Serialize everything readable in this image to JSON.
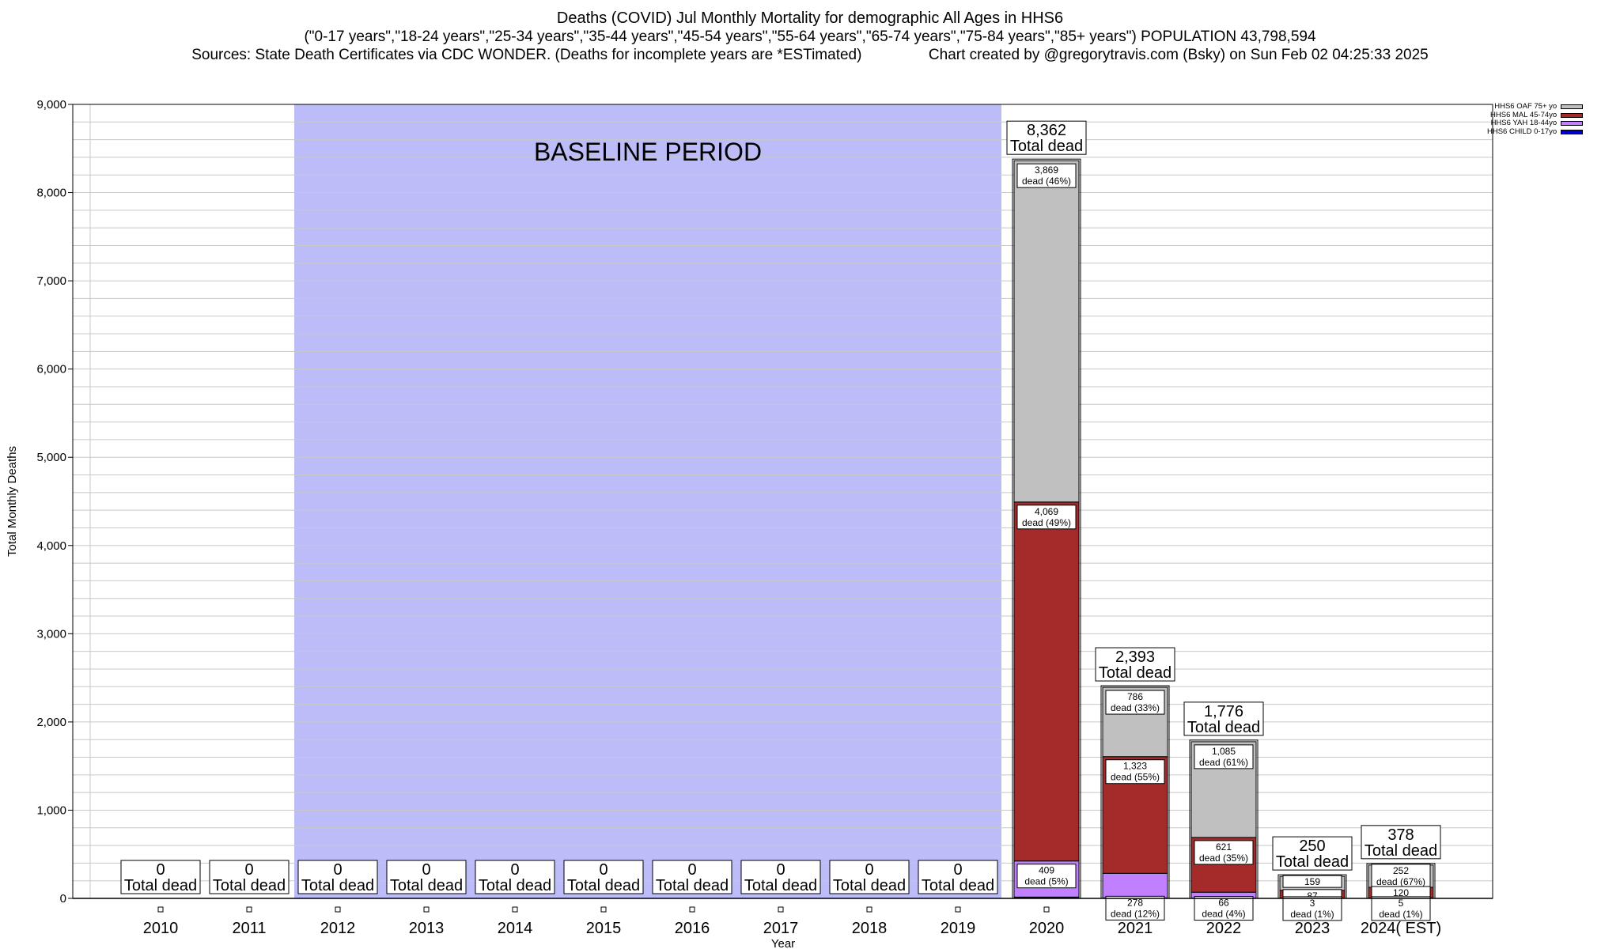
{
  "header": {
    "title": "Deaths (COVID) Jul Monthly Mortality for demographic All Ages in HHS6",
    "subtitle": "(\"0-17 years\",\"18-24 years\",\"25-34 years\",\"35-44 years\",\"45-54 years\",\"55-64 years\",\"65-74 years\",\"75-84 years\",\"85+ years\") POPULATION 43,798,594",
    "sources": "Sources: State Death Certificates via CDC WONDER. (Deaths for incomplete years are *ESTimated)",
    "credit": "Chart created by @gregorytravis.com (Bsky) on Sun Feb 02 04:25:33 2025"
  },
  "colors": {
    "baseline": "#bcbcf9",
    "OAF": "#c0c0c0",
    "MAL": "#a52a2a",
    "YAH": "#c080ff",
    "CHILD": "#0000cd"
  },
  "chart_data": {
    "type": "bar",
    "stacked": true,
    "xlabel": "Year",
    "ylabel": "Total Monthly Deaths",
    "ylim": [
      0,
      9000
    ],
    "yticks": [
      0,
      1000,
      2000,
      3000,
      4000,
      5000,
      6000,
      7000,
      8000,
      9000
    ],
    "ytick_labels": [
      "0",
      "1,000",
      "2,000",
      "3,000",
      "4,000",
      "5,000",
      "6,000",
      "7,000",
      "8,000",
      "9,000"
    ],
    "categories": [
      "2010",
      "2011",
      "2012",
      "2013",
      "2014",
      "2015",
      "2016",
      "2017",
      "2018",
      "2019",
      "2020",
      "2021",
      "2022",
      "2023",
      "2024( EST)"
    ],
    "baseline": {
      "label": "BASELINE PERIOD",
      "from": "2012",
      "to": "2019"
    },
    "series": [
      {
        "name": "HHS6 CHILD 0-17yo",
        "key": "CHILD",
        "values": [
          0,
          0,
          0,
          0,
          0,
          0,
          0,
          0,
          0,
          0,
          15,
          6,
          4,
          1,
          1
        ]
      },
      {
        "name": "HHS6 YAH 18-44yo",
        "key": "YAH",
        "values": [
          0,
          0,
          0,
          0,
          0,
          0,
          0,
          0,
          0,
          0,
          409,
          278,
          66,
          3,
          5
        ]
      },
      {
        "name": "HHS6 MAL 45-74yo",
        "key": "MAL",
        "values": [
          0,
          0,
          0,
          0,
          0,
          0,
          0,
          0,
          0,
          0,
          4069,
          1323,
          621,
          87,
          120
        ]
      },
      {
        "name": "HHS6 OAF 75+ yo",
        "key": "OAF",
        "values": [
          0,
          0,
          0,
          0,
          0,
          0,
          0,
          0,
          0,
          0,
          3869,
          786,
          1085,
          159,
          252
        ]
      }
    ],
    "totals": [
      0,
      0,
      0,
      0,
      0,
      0,
      0,
      0,
      0,
      0,
      8362,
      2393,
      1776,
      250,
      378
    ],
    "total_labels": [
      "0",
      "0",
      "0",
      "0",
      "0",
      "0",
      "0",
      "0",
      "0",
      "0",
      "8,362",
      "2,393",
      "1,776",
      "250",
      "378"
    ],
    "total_suffix": "Total dead",
    "segment_labels": {
      "2020": [
        {
          "key": "OAF",
          "value": "3,869",
          "text": "dead (46%)"
        },
        {
          "key": "MAL",
          "value": "4,069",
          "text": "dead (49%)"
        },
        {
          "key": "YAH",
          "value": "409",
          "text": "dead (5%)"
        }
      ],
      "2021": [
        {
          "key": "OAF",
          "value": "786",
          "text": "dead (33%)"
        },
        {
          "key": "MAL",
          "value": "1,323",
          "text": "dead (55%)"
        },
        {
          "key": "YAH",
          "value": "278",
          "text": "dead (12%)"
        }
      ],
      "2022": [
        {
          "key": "OAF",
          "value": "1,085",
          "text": "dead (61%)"
        },
        {
          "key": "MAL",
          "value": "621",
          "text": "dead (35%)"
        },
        {
          "key": "YAH",
          "value": "66",
          "text": "dead (4%)"
        }
      ],
      "2023": [
        {
          "key": "OAF",
          "value": "159",
          "text": ""
        },
        {
          "key": "MAL",
          "value": "87",
          "text": ""
        },
        {
          "key": "YAH",
          "value": "3",
          "text": "dead (1%)"
        }
      ],
      "2024( EST)": [
        {
          "key": "OAF",
          "value": "252",
          "text": "dead (67%)"
        },
        {
          "key": "MAL",
          "value": "120",
          "text": ""
        },
        {
          "key": "YAH",
          "value": "5",
          "text": "dead (1%)"
        }
      ]
    },
    "legend": {
      "position": "top-right",
      "entries": [
        {
          "name": "HHS6 OAF 75+ yo",
          "key": "OAF"
        },
        {
          "name": "HHS6 MAL 45-74yo",
          "key": "MAL"
        },
        {
          "name": "HHS6 YAH 18-44yo",
          "key": "YAH"
        },
        {
          "name": "HHS6 CHILD 0-17yo",
          "key": "CHILD"
        }
      ]
    },
    "grid": true
  }
}
